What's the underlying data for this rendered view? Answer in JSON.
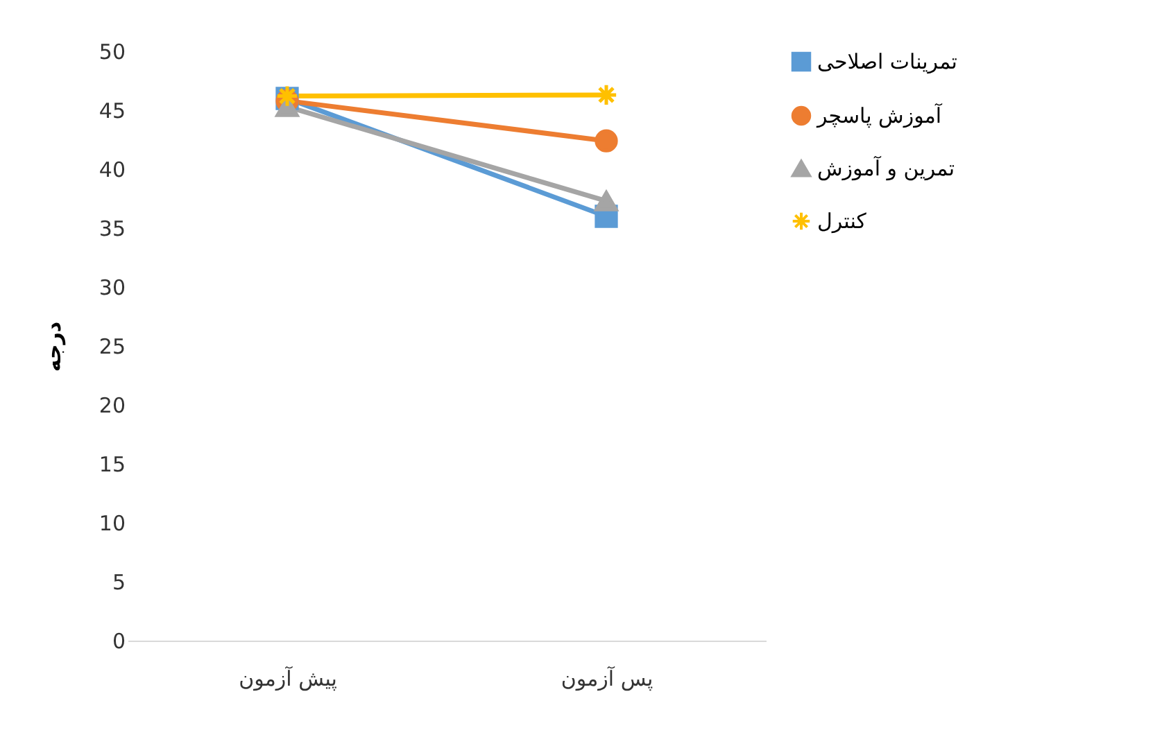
{
  "chart_data": {
    "type": "line",
    "ylabel": "درجه",
    "categories": [
      "پیش آزمون",
      "پس آزمون"
    ],
    "series": [
      {
        "name": "تمرینات اصلاحی",
        "color": "#5b9bd5",
        "marker": "square",
        "values": [
          46,
          36
        ]
      },
      {
        "name": "آموزش پاسچر",
        "color": "#ed7d31",
        "marker": "circle",
        "values": [
          45.8,
          42.4
        ]
      },
      {
        "name": "تمرین و آموزش",
        "color": "#a5a5a5",
        "marker": "triangle",
        "values": [
          45.3,
          37.3
        ]
      },
      {
        "name": "کنترل",
        "color": "#ffc000",
        "marker": "cross",
        "values": [
          46.2,
          46.3
        ]
      }
    ],
    "ylim": [
      0,
      50
    ],
    "yticks": [
      0,
      5,
      10,
      15,
      20,
      25,
      30,
      35,
      40,
      45,
      50
    ],
    "grid": false,
    "legend": "right"
  }
}
